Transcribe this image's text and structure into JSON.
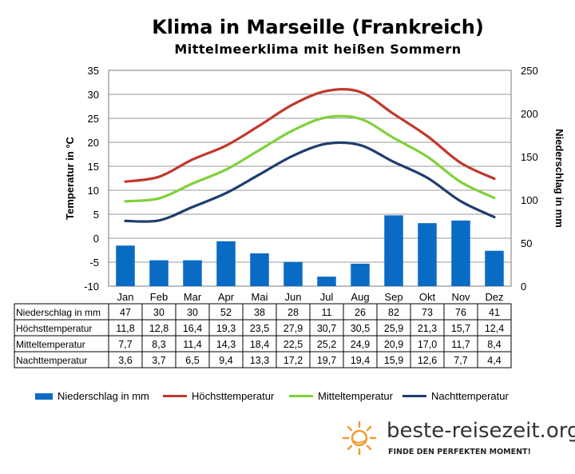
{
  "chart_data": {
    "type": "bar+line",
    "title": "Klima in Marseille (Frankreich)",
    "subtitle": "Mittelmeerklima mit heißen Sommern",
    "ylabel_left": "Temperatur in °C",
    "ylabel_right": "Niederschlag in mm",
    "ylim_left": [
      -10,
      35
    ],
    "ylim_right": [
      0,
      250
    ],
    "yticks_left": [
      "35",
      "30",
      "25",
      "20",
      "15",
      "10",
      "5",
      "0",
      "-5",
      "-10"
    ],
    "yticks_right": [
      "250",
      "200",
      "150",
      "100",
      "50",
      "0"
    ],
    "grid": true,
    "legend_position": "bottom",
    "categories": [
      "Jan",
      "Feb",
      "Mar",
      "Apr",
      "Mai",
      "Jun",
      "Jul",
      "Aug",
      "Sep",
      "Okt",
      "Nov",
      "Dez"
    ],
    "series": [
      {
        "name": "Niederschlag in mm",
        "kind": "bar",
        "axis": "right",
        "color": "#0a6bc4",
        "values": [
          47,
          30,
          30,
          52,
          38,
          28,
          11,
          26,
          82,
          73,
          76,
          41
        ],
        "labels": [
          "47",
          "30",
          "30",
          "52",
          "38",
          "28",
          "11",
          "26",
          "82",
          "73",
          "76",
          "41"
        ]
      },
      {
        "name": "Höchsttemperatur",
        "kind": "line",
        "axis": "left",
        "color": "#c0392b",
        "values": [
          11.8,
          12.8,
          16.4,
          19.3,
          23.5,
          27.9,
          30.7,
          30.5,
          25.9,
          21.3,
          15.7,
          12.4
        ],
        "labels": [
          "11,8",
          "12,8",
          "16,4",
          "19,3",
          "23,5",
          "27,9",
          "30,7",
          "30,5",
          "25,9",
          "21,3",
          "15,7",
          "12,4"
        ]
      },
      {
        "name": "Mitteltemperatur",
        "kind": "line",
        "axis": "left",
        "color": "#7fd13b",
        "values": [
          7.7,
          8.3,
          11.4,
          14.3,
          18.4,
          22.5,
          25.2,
          24.9,
          20.9,
          17.0,
          11.7,
          8.4
        ],
        "labels": [
          "7,7",
          "8,3",
          "11,4",
          "14,3",
          "18,4",
          "22,5",
          "25,2",
          "24,9",
          "20,9",
          "17,0",
          "11,7",
          "8,4"
        ]
      },
      {
        "name": "Nachttemperatur",
        "kind": "line",
        "axis": "left",
        "color": "#1f3d6e",
        "values": [
          3.6,
          3.7,
          6.5,
          9.4,
          13.3,
          17.2,
          19.7,
          19.4,
          15.9,
          12.6,
          7.7,
          4.4
        ],
        "labels": [
          "3,6",
          "3,7",
          "6,5",
          "9,4",
          "13,3",
          "17,2",
          "19,7",
          "19,4",
          "15,9",
          "12,6",
          "7,7",
          "4,4"
        ]
      }
    ]
  },
  "logo": {
    "text": "beste-reisezeit.org",
    "tagline": "FINDE DEN PERFEKTEN MOMENT!",
    "icon": "sun-icon",
    "color": "#f29a2e"
  }
}
